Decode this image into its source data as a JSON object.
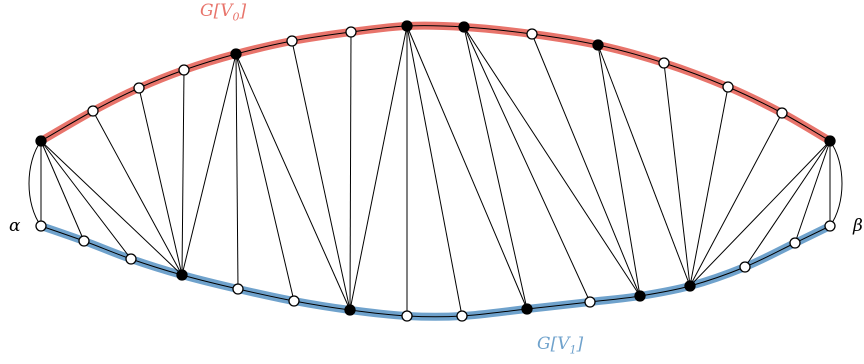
{
  "labels": {
    "top_set": "G[V0]",
    "bottom_set": "G[V1]",
    "left_end": "α",
    "right_end": "β"
  },
  "colors": {
    "top_path": "#e8746b",
    "bottom_path": "#6fa2cc",
    "filled_vertex": "#000000",
    "open_vertex": "#ffffff",
    "edge": "#000000"
  },
  "graph": {
    "top_vertices": [
      {
        "id": "t0",
        "filled": true
      },
      {
        "id": "t1",
        "filled": false
      },
      {
        "id": "t2",
        "filled": false
      },
      {
        "id": "t3",
        "filled": false
      },
      {
        "id": "t4",
        "filled": true
      },
      {
        "id": "t5",
        "filled": false
      },
      {
        "id": "t6",
        "filled": false
      },
      {
        "id": "t7",
        "filled": true
      },
      {
        "id": "t8",
        "filled": true
      },
      {
        "id": "t9",
        "filled": false
      },
      {
        "id": "t10",
        "filled": true
      },
      {
        "id": "t11",
        "filled": false
      },
      {
        "id": "t12",
        "filled": false
      },
      {
        "id": "t13",
        "filled": false
      },
      {
        "id": "t14",
        "filled": true
      }
    ],
    "bottom_vertices": [
      {
        "id": "b0",
        "filled": false
      },
      {
        "id": "b1",
        "filled": false
      },
      {
        "id": "b2",
        "filled": false
      },
      {
        "id": "b3",
        "filled": true
      },
      {
        "id": "b4",
        "filled": false
      },
      {
        "id": "b5",
        "filled": false
      },
      {
        "id": "b6",
        "filled": true
      },
      {
        "id": "b7",
        "filled": false
      },
      {
        "id": "b8",
        "filled": false
      },
      {
        "id": "b9",
        "filled": true
      },
      {
        "id": "b10",
        "filled": false
      },
      {
        "id": "b11",
        "filled": true
      },
      {
        "id": "b12",
        "filled": true
      },
      {
        "id": "b13",
        "filled": false
      },
      {
        "id": "b14",
        "filled": false
      },
      {
        "id": "b15",
        "filled": false
      }
    ],
    "edges": [
      [
        "t0",
        "b0"
      ],
      [
        "t0",
        "b1"
      ],
      [
        "t0",
        "b2"
      ],
      [
        "t0",
        "b3"
      ],
      [
        "t1",
        "b3"
      ],
      [
        "t2",
        "b3"
      ],
      [
        "t3",
        "b3"
      ],
      [
        "t4",
        "b3"
      ],
      [
        "t4",
        "b4"
      ],
      [
        "t4",
        "b5"
      ],
      [
        "t4",
        "b6"
      ],
      [
        "t5",
        "b6"
      ],
      [
        "t6",
        "b6"
      ],
      [
        "t7",
        "b6"
      ],
      [
        "t7",
        "b7"
      ],
      [
        "t7",
        "b8"
      ],
      [
        "t7",
        "b9"
      ],
      [
        "t8",
        "b9"
      ],
      [
        "t8",
        "b10"
      ],
      [
        "t8",
        "b11"
      ],
      [
        "t9",
        "b11"
      ],
      [
        "t10",
        "b11"
      ],
      [
        "t10",
        "b12"
      ],
      [
        "t11",
        "b12"
      ],
      [
        "t12",
        "b12"
      ],
      [
        "t13",
        "b12"
      ],
      [
        "t14",
        "b12"
      ],
      [
        "t14",
        "b13"
      ],
      [
        "t14",
        "b14"
      ],
      [
        "t14",
        "b15"
      ]
    ]
  }
}
